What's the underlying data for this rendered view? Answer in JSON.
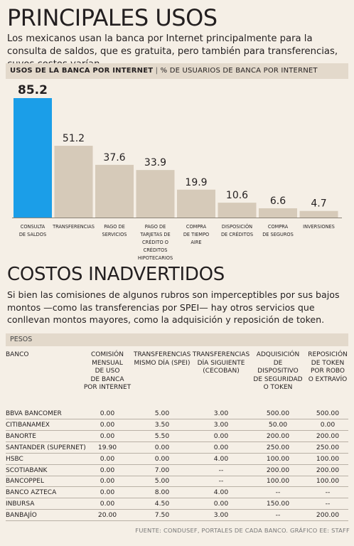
{
  "section1": {
    "title": "PRINCIPALES USOS",
    "intro": "Los mexicanos usan la banca por Internet principalmente para la consulta de saldos, que es gratuita, pero también para transferencias, cuyos costos varían.",
    "header_bold": "USOS DE LA BANCA POR INTERNET",
    "header_sep": " | ",
    "header_rest": "% DE USUARIOS DE  BANCA POR INTERNET"
  },
  "chart_data": {
    "type": "bar",
    "title": "USOS DE LA BANCA POR INTERNET",
    "subtitle": "% DE USUARIOS DE  BANCA POR INTERNET",
    "categories": [
      [
        "CONSULTA",
        "DE SALDOS"
      ],
      [
        "TRANSFERENCIAS"
      ],
      [
        "PAGO DE",
        "SERVICIOS"
      ],
      [
        "PAGO DE",
        "TARJETAS DE",
        "CRÉDITO O",
        "CRÉDITOS",
        "HIPOTECARIOS"
      ],
      [
        "COMPRA",
        "DE TIEMPO",
        "AIRE"
      ],
      [
        "DISPOSICIÓN",
        "DE CRÉDITOS"
      ],
      [
        "COMPRA",
        "DE SEGUROS"
      ],
      [
        "INVERSIONES"
      ]
    ],
    "values": [
      85.2,
      51.2,
      37.6,
      33.9,
      19.9,
      10.6,
      6.6,
      4.7
    ],
    "value_labels": [
      "85.2",
      "51.2",
      "37.6",
      "33.9",
      "19.9",
      "10.6",
      "6.6",
      "4.7"
    ],
    "ylim": [
      0,
      85.2
    ],
    "grid": false,
    "colors": {
      "highlight": "#1b9ee8",
      "bar": "#d6cab9",
      "axis": "#8c8478"
    }
  },
  "section2": {
    "title": "COSTOS INADVERTIDOS",
    "intro": "Si bien las comisiones de algunos rubros son imperceptibles por sus bajos montos —como las transferencias por SPEI— hay otros servicios que conllevan montos mayores, como la adquisición y reposición de token.",
    "pesos_label": "PESOS"
  },
  "table": {
    "columns": [
      [
        "BANCO"
      ],
      [
        "COMISIÓN",
        "MENSUAL",
        "DE USO",
        "DE BANCA",
        "POR INTERNET"
      ],
      [
        "TRANSFERENCIAS",
        "MISMO DÍA (SPEI)"
      ],
      [
        "TRANSFERENCIAS",
        "DÍA SIGUIENTE",
        "(CECOBAN)"
      ],
      [
        "ADQUISICIÓN",
        "DE DISPOSITIVO",
        "DE SEGURIDAD",
        "O TOKEN"
      ],
      [
        "REPOSICIÓN",
        "DE TOKEN",
        "POR ROBO",
        "O EXTRAVÍO"
      ]
    ],
    "rows": [
      [
        "BBVA BANCOMER",
        "0.00",
        "5.00",
        "3.00",
        "500.00",
        "500.00"
      ],
      [
        "CITIBANAMEX",
        "0.00",
        "3.50",
        "3.00",
        "50.00",
        "0.00"
      ],
      [
        "BANORTE",
        "0.00",
        "5.50",
        "0.00",
        "200.00",
        "200.00"
      ],
      [
        "SANTANDER (SUPERNET)",
        "19.90",
        "0.00",
        "0.00",
        "250.00",
        "250.00"
      ],
      [
        "HSBC",
        "0.00",
        "0.00",
        "4.00",
        "100.00",
        "100.00"
      ],
      [
        "SCOTIABANK",
        "0.00",
        "7.00",
        "--",
        "200.00",
        "200.00"
      ],
      [
        "BANCOPPEL",
        "0.00",
        "5.00",
        "--",
        "100.00",
        "100.00"
      ],
      [
        "BANCO AZTECA",
        "0.00",
        "8.00",
        "4.00",
        "--",
        "--"
      ],
      [
        "INBURSA",
        "0.00",
        "4.50",
        "0.00",
        "150.00",
        "--"
      ],
      [
        "BANBAJÍO",
        "20.00",
        "7.50",
        "3.00",
        "--",
        "200.00"
      ]
    ]
  },
  "source": "FUENTE: CONDUSEF, PORTALES DE CADA BANCO.  GRÁFICO EE: STAFF"
}
